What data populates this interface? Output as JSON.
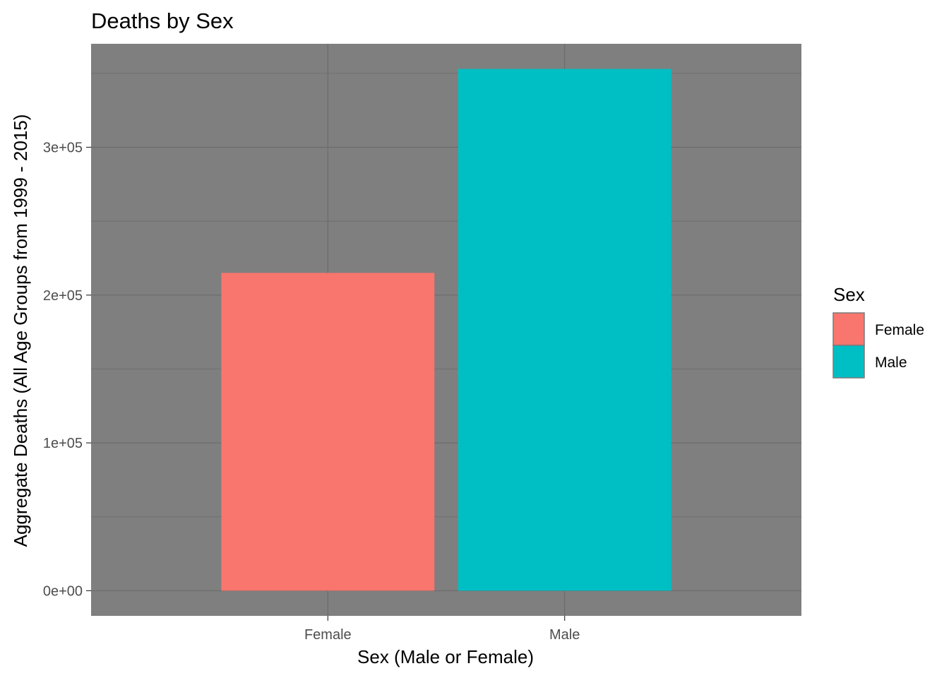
{
  "chart_data": {
    "type": "bar",
    "title": "Deaths by Sex",
    "xlabel": "Sex (Male or Female)",
    "ylabel": "Aggregate Deaths (All Age Groups from 1999 - 2015)",
    "categories": [
      "Female",
      "Male"
    ],
    "values": [
      215000,
      353000
    ],
    "colors": [
      "#F8766D",
      "#00BFC4"
    ],
    "ylim": [
      -17000,
      370000
    ],
    "yticks": [
      0,
      100000,
      200000,
      300000
    ],
    "ytick_labels": [
      "0e+00",
      "1e+05",
      "2e+05",
      "3e+05"
    ],
    "grid": true,
    "panel_background": "#7f7f7f",
    "grid_color": "#6b6b6b",
    "legend": {
      "title": "Sex",
      "position": "right",
      "entries": [
        "Female",
        "Male"
      ]
    }
  }
}
